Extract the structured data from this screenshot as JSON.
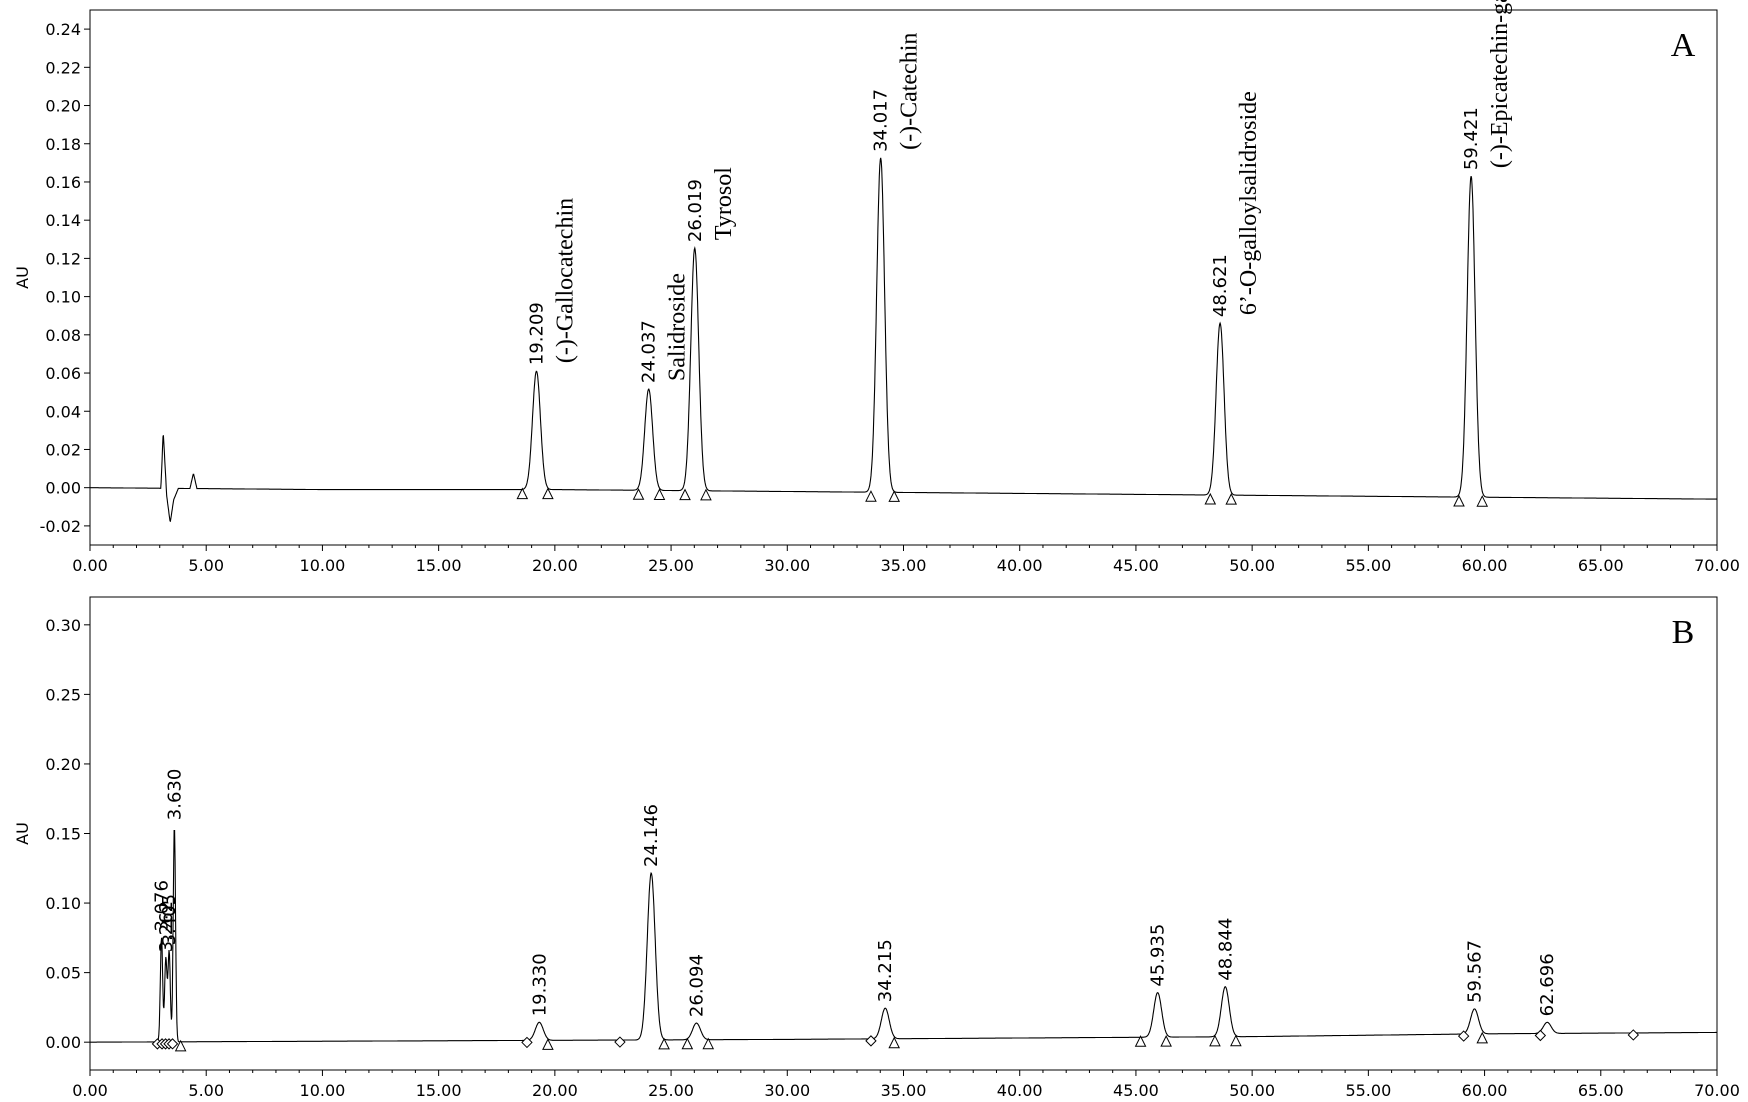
{
  "chart_data": [
    {
      "type": "line",
      "panel": "A",
      "ylabel": "AU",
      "xlim": [
        0,
        70
      ],
      "ylim": [
        -0.03,
        0.25
      ],
      "xticks": [
        "0.00",
        "5.00",
        "10.00",
        "15.00",
        "20.00",
        "25.00",
        "30.00",
        "35.00",
        "40.00",
        "45.00",
        "50.00",
        "55.00",
        "60.00",
        "65.00",
        "70.00"
      ],
      "yticks": [
        "-0.02",
        "0.00",
        "0.02",
        "0.04",
        "0.06",
        "0.08",
        "0.10",
        "0.12",
        "0.14",
        "0.16",
        "0.18",
        "0.20",
        "0.22",
        "0.24"
      ],
      "grid": false,
      "baseline": [
        [
          0,
          0.0
        ],
        [
          10,
          -0.001
        ],
        [
          20,
          -0.001
        ],
        [
          30,
          -0.002
        ],
        [
          40,
          -0.003
        ],
        [
          50,
          -0.004
        ],
        [
          60,
          -0.005
        ],
        [
          70,
          -0.006
        ]
      ],
      "disturbances": [
        [
          3.05,
          0.0
        ],
        [
          3.15,
          0.03
        ],
        [
          3.3,
          -0.004
        ],
        [
          3.45,
          -0.018
        ],
        [
          3.6,
          -0.006
        ],
        [
          3.8,
          0.0
        ],
        [
          4.3,
          0.0
        ],
        [
          4.45,
          0.008
        ],
        [
          4.6,
          0.0
        ]
      ],
      "peaks": [
        {
          "rt": 19.209,
          "height": 0.062,
          "label": "19.209",
          "compound": "(-)-Gallocatechin",
          "markers": [
            18.6,
            19.7
          ]
        },
        {
          "rt": 24.037,
          "height": 0.053,
          "label": "24.037",
          "compound": "Salidroside",
          "markers": [
            23.6,
            24.5
          ]
        },
        {
          "rt": 26.019,
          "height": 0.127,
          "label": "26.019",
          "compound": "Tyrosol",
          "markers": [
            25.6,
            26.5
          ]
        },
        {
          "rt": 34.017,
          "height": 0.175,
          "label": "34.017",
          "compound": "(-)-Catechin",
          "markers": [
            33.6,
            34.6
          ]
        },
        {
          "rt": 48.621,
          "height": 0.09,
          "label": "48.621",
          "compound": "6’-O-galloylsalidroside",
          "markers": [
            48.2,
            49.1
          ]
        },
        {
          "rt": 59.421,
          "height": 0.168,
          "label": "59.421",
          "compound": "(-)-Epicatechin-gallate",
          "markers": [
            58.9,
            59.9
          ]
        }
      ]
    },
    {
      "type": "line",
      "panel": "B",
      "ylabel": "AU",
      "xlim": [
        0,
        70
      ],
      "ylim": [
        -0.02,
        0.32
      ],
      "xticks": [
        "0.00",
        "5.00",
        "10.00",
        "15.00",
        "20.00",
        "25.00",
        "30.00",
        "35.00",
        "40.00",
        "45.00",
        "50.00",
        "55.00",
        "60.00",
        "65.00",
        "70.00"
      ],
      "yticks": [
        "0.00",
        "0.05",
        "0.10",
        "0.15",
        "0.20",
        "0.25",
        "0.30"
      ],
      "grid": false,
      "baseline": [
        [
          0,
          0.0
        ],
        [
          15,
          0.001
        ],
        [
          30,
          0.002
        ],
        [
          40,
          0.003
        ],
        [
          50,
          0.004
        ],
        [
          60,
          0.006
        ],
        [
          70,
          0.007
        ]
      ],
      "peaks": [
        {
          "rt": 3.076,
          "height": 0.075,
          "label": "3.076"
        },
        {
          "rt": 3.262,
          "height": 0.06,
          "label": "3.262"
        },
        {
          "rt": 3.405,
          "height": 0.065,
          "label": "3.405"
        },
        {
          "rt": 3.63,
          "height": 0.155,
          "label": "3.630"
        },
        {
          "rt": 19.33,
          "height": 0.013,
          "label": "19.330"
        },
        {
          "rt": 24.146,
          "height": 0.12,
          "label": "24.146"
        },
        {
          "rt": 26.094,
          "height": 0.012,
          "label": "26.094"
        },
        {
          "rt": 34.215,
          "height": 0.022,
          "label": "34.215"
        },
        {
          "rt": 45.935,
          "height": 0.032,
          "label": "45.935"
        },
        {
          "rt": 48.844,
          "height": 0.036,
          "label": "48.844"
        },
        {
          "rt": 59.567,
          "height": 0.018,
          "label": "59.567"
        },
        {
          "rt": 62.696,
          "height": 0.008,
          "label": "62.696"
        }
      ],
      "markers_triangle": [
        3.9,
        19.7,
        24.7,
        25.7,
        26.6,
        34.6,
        45.2,
        46.3,
        48.4,
        49.3,
        59.9
      ],
      "markers_diamond": [
        2.9,
        3.1,
        3.25,
        3.4,
        3.55,
        18.8,
        22.8,
        33.6,
        59.1,
        62.4,
        66.4
      ]
    }
  ]
}
